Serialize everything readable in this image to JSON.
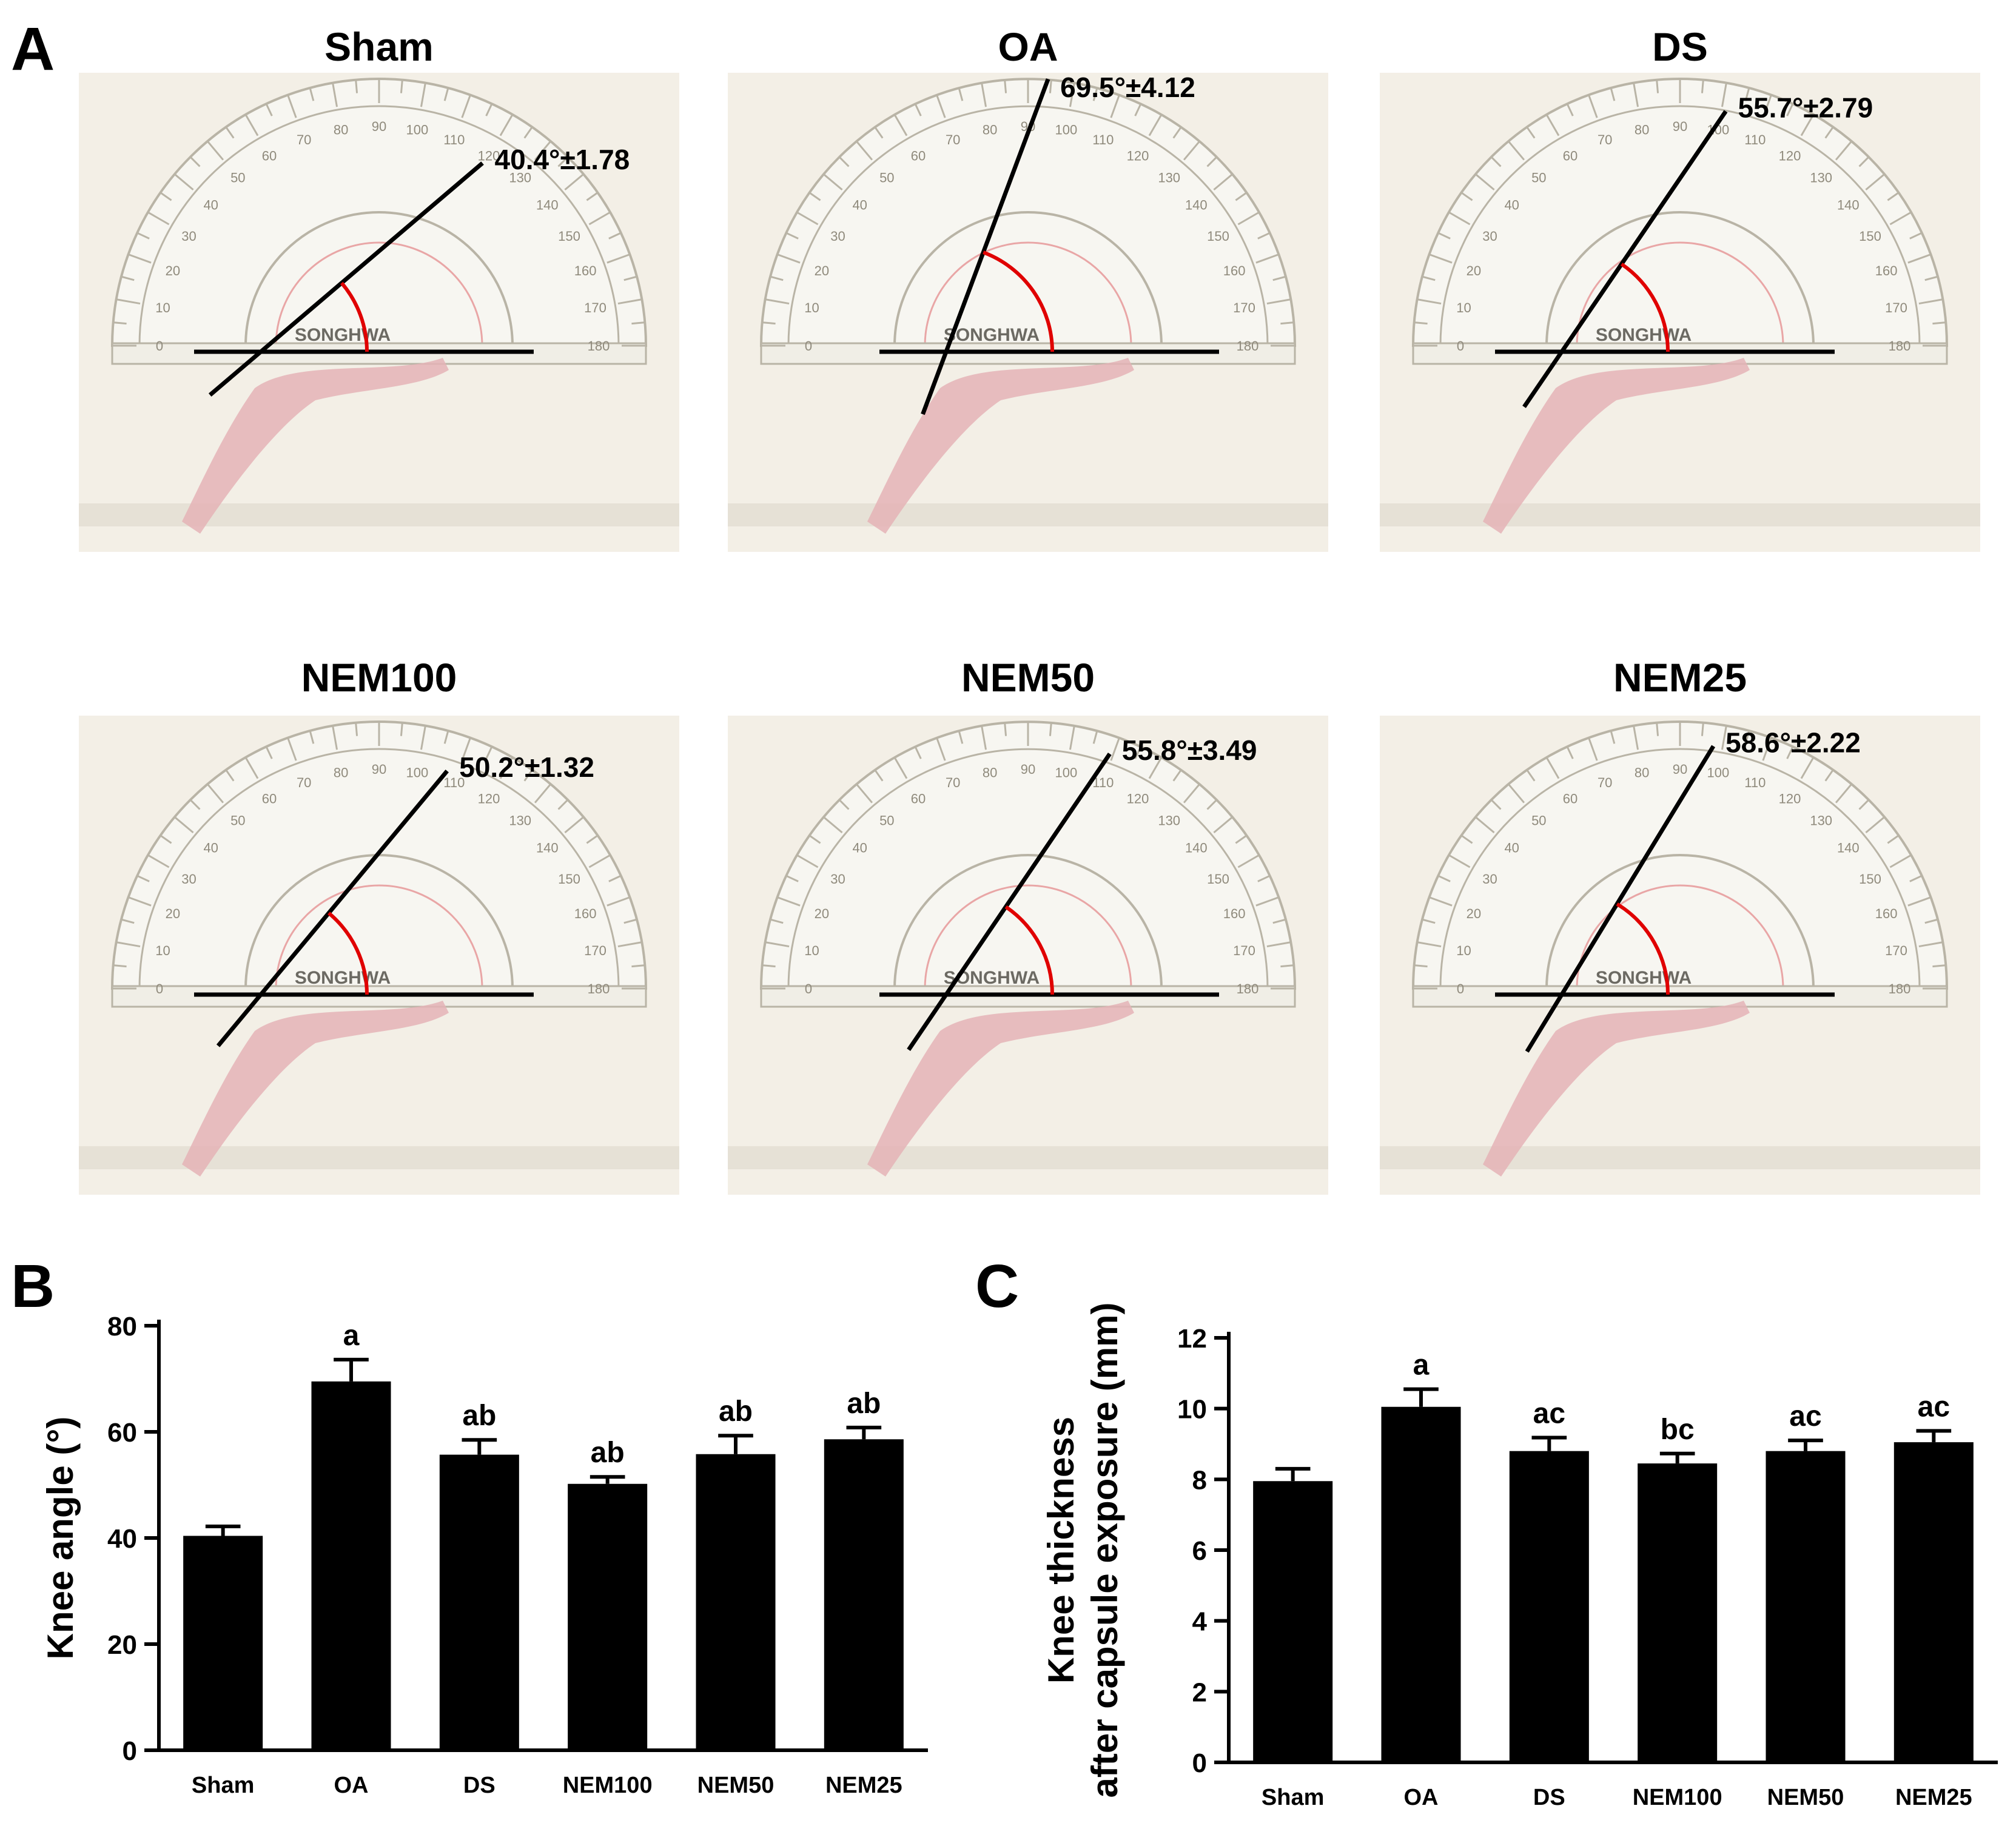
{
  "panels": {
    "a_letter": "A",
    "b_letter": "B",
    "c_letter": "C"
  },
  "photos": [
    {
      "group": "Sham",
      "angle_label": "40.4°±1.78",
      "angle_deg": 40.4
    },
    {
      "group": "OA",
      "angle_label": "69.5°±4.12",
      "angle_deg": 69.5
    },
    {
      "group": "DS",
      "angle_label": "55.7°±2.79",
      "angle_deg": 55.7
    },
    {
      "group": "NEM100",
      "angle_label": "50.2°±1.32",
      "angle_deg": 50.2
    },
    {
      "group": "NEM50",
      "angle_label": "55.8°±3.49",
      "angle_deg": 55.8
    },
    {
      "group": "NEM25",
      "angle_label": "58.6°±2.22",
      "angle_deg": 58.6
    }
  ],
  "protractor_text": {
    "brand": "SONGHWA",
    "outer_ticks": [
      "0",
      "10",
      "20",
      "30",
      "40",
      "50",
      "60",
      "70",
      "80",
      "90",
      "100",
      "110",
      "120",
      "130",
      "140",
      "150",
      "160",
      "170",
      "180"
    ]
  },
  "colors": {
    "bar": "#000000",
    "arc": "#e00000",
    "photo_bg": "#f3efe6",
    "protractor": "#b9b4a6",
    "tissue": "#e4b3b6"
  },
  "chart_data": [
    {
      "type": "bar",
      "panel": "B",
      "categories": [
        "Sham",
        "OA",
        "DS",
        "NEM100",
        "NEM50",
        "NEM25"
      ],
      "values": [
        40.4,
        69.5,
        55.7,
        50.2,
        55.8,
        58.6
      ],
      "errors": [
        1.78,
        4.12,
        2.79,
        1.32,
        3.49,
        2.22
      ],
      "significance": [
        "",
        "a",
        "ab",
        "ab",
        "ab",
        "ab"
      ],
      "ylabel": "Knee angle (°)",
      "ylabel_lines": [
        "Knee angle (°)"
      ],
      "ylim": [
        0,
        80
      ],
      "yticks": [
        0,
        20,
        40,
        60,
        80
      ]
    },
    {
      "type": "bar",
      "panel": "C",
      "categories": [
        "Sham",
        "OA",
        "DS",
        "NEM100",
        "NEM50",
        "NEM25"
      ],
      "values": [
        7.95,
        10.05,
        8.8,
        8.45,
        8.8,
        9.05
      ],
      "errors": [
        0.35,
        0.5,
        0.38,
        0.28,
        0.3,
        0.32
      ],
      "significance": [
        "",
        "a",
        "ac",
        "bc",
        "ac",
        "ac"
      ],
      "ylabel": "Knee thickness after capsule exposure (mm)",
      "ylabel_lines": [
        "Knee thickness",
        "after capsule exposure (mm)"
      ],
      "ylim": [
        0,
        12
      ],
      "yticks": [
        0,
        2,
        4,
        6,
        8,
        10,
        12
      ]
    }
  ]
}
